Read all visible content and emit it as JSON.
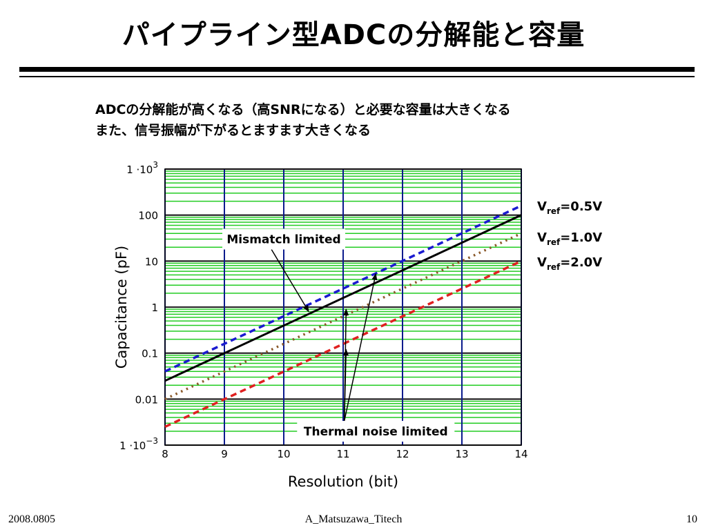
{
  "slide": {
    "title": "パイプライン型ADCの分解能と容量",
    "subtitle_lines": [
      "ADCの分解能が高くなる（高SNRになる）と必要な容量は大きくなる",
      "また、信号振幅が下がるとますます大きくなる"
    ],
    "footer": {
      "date": "2008.0805",
      "author": "A_Matsuzawa_Titech",
      "page": "10"
    }
  },
  "chart_data": {
    "type": "line",
    "xlabel": "Resolution (bit)",
    "ylabel": "Capacitance (pF)",
    "xlim": [
      8,
      14
    ],
    "ylim": [
      0.001,
      1000
    ],
    "yscale": "log",
    "x_ticks": [
      "8",
      "9",
      "10",
      "11",
      "12",
      "13",
      "14"
    ],
    "y_ticks": [
      {
        "value": 1000,
        "base": "1 ·10",
        "exp": "3"
      },
      {
        "value": 100,
        "base": "100",
        "exp": ""
      },
      {
        "value": 10,
        "base": "10",
        "exp": ""
      },
      {
        "value": 1,
        "base": "1",
        "exp": ""
      },
      {
        "value": 0.1,
        "base": "0.1",
        "exp": ""
      },
      {
        "value": 0.01,
        "base": "0.01",
        "exp": ""
      },
      {
        "value": 0.001,
        "base": "1 ·10",
        "exp": "−3"
      }
    ],
    "grid": true,
    "series": [
      {
        "label_main": "",
        "label_sub": "",
        "label_rest": "",
        "color": "#000000",
        "style": "solid",
        "x": [
          8,
          14
        ],
        "y": [
          0.025,
          100
        ]
      },
      {
        "label_main": "V",
        "label_sub": "ref",
        "label_rest": "=0.5V",
        "color": "#1a1ad0",
        "style": "dashed",
        "x": [
          8,
          14
        ],
        "y": [
          0.04,
          160
        ]
      },
      {
        "label_main": "V",
        "label_sub": "ref",
        "label_rest": "=1.0V",
        "color": "#8b5a2b",
        "style": "dotted",
        "x": [
          8,
          14
        ],
        "y": [
          0.01,
          40
        ]
      },
      {
        "label_main": "V",
        "label_sub": "ref",
        "label_rest": "=2.0V",
        "color": "#e02020",
        "style": "dashed",
        "x": [
          8,
          14
        ],
        "y": [
          0.0025,
          10
        ]
      }
    ],
    "annotations": [
      {
        "text": "Mismatch limited",
        "box_at": {
          "x": 10.0,
          "y": 30
        },
        "targets": [
          {
            "x": 10.42,
            "y": 0.8
          }
        ]
      },
      {
        "text": "Thermal noise limited",
        "box_at": {
          "x": 11.55,
          "y": 0.002
        },
        "targets": [
          {
            "x": 11.05,
            "y": 0.12
          },
          {
            "x": 11.05,
            "y": 0.9
          },
          {
            "x": 11.55,
            "y": 5.3
          }
        ]
      }
    ]
  }
}
